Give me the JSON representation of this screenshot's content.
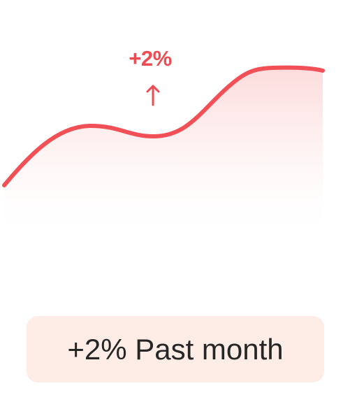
{
  "trend": {
    "delta_label": "+2%",
    "direction": "up",
    "arrow_icon": "arrow-up-icon",
    "accent_color": "#ef4b52",
    "fill_color": "#fde2e2"
  },
  "summary": {
    "change": "+2%",
    "period": "Past month",
    "background": "#fdede6"
  }
}
